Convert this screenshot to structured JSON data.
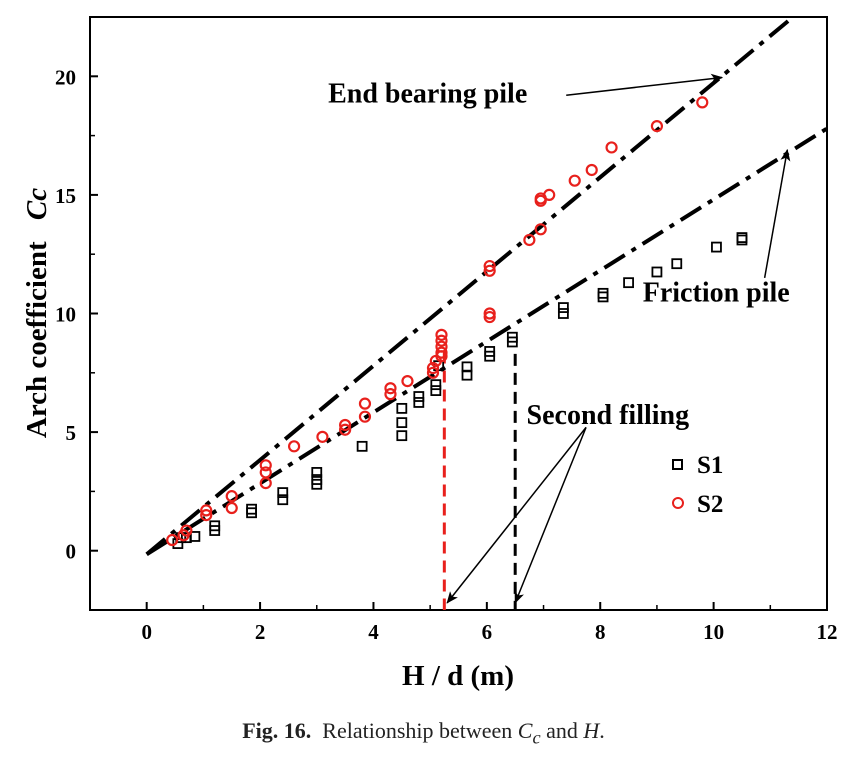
{
  "chart_data": {
    "type": "scatter",
    "xlabel": "H / d (m)",
    "ylabel": "Arch coefficient",
    "ylabel_symbol": "Cc",
    "xlim": [
      -1,
      12
    ],
    "ylim": [
      -2.5,
      22.5
    ],
    "x_ticks": [
      "0",
      "2",
      "4",
      "6",
      "8",
      "10",
      "12"
    ],
    "y_ticks": [
      "0",
      "5",
      "10",
      "15",
      "20"
    ],
    "grid": false,
    "legend_position": "bottom-right",
    "series": [
      {
        "name": "S1",
        "marker": "open-square",
        "color": "#000000",
        "points": [
          [
            0.55,
            0.3
          ],
          [
            0.6,
            0.55
          ],
          [
            0.7,
            0.55
          ],
          [
            0.85,
            0.6
          ],
          [
            1.2,
            0.85
          ],
          [
            1.2,
            1.05
          ],
          [
            1.85,
            1.6
          ],
          [
            1.85,
            1.75
          ],
          [
            2.4,
            2.15
          ],
          [
            2.4,
            2.45
          ],
          [
            3.0,
            2.8
          ],
          [
            3.0,
            3.0
          ],
          [
            3.0,
            3.3
          ],
          [
            3.8,
            4.4
          ],
          [
            4.5,
            4.85
          ],
          [
            4.5,
            5.4
          ],
          [
            4.5,
            6.0
          ],
          [
            4.8,
            6.25
          ],
          [
            4.8,
            6.5
          ],
          [
            5.1,
            6.75
          ],
          [
            5.1,
            7.0
          ],
          [
            5.15,
            7.8
          ],
          [
            5.65,
            7.4
          ],
          [
            5.65,
            7.75
          ],
          [
            6.05,
            8.2
          ],
          [
            6.05,
            8.4
          ],
          [
            6.45,
            8.8
          ],
          [
            6.45,
            9.0
          ],
          [
            7.35,
            10.0
          ],
          [
            7.35,
            10.25
          ],
          [
            8.05,
            10.7
          ],
          [
            8.05,
            10.85
          ],
          [
            8.5,
            11.3
          ],
          [
            9.0,
            11.75
          ],
          [
            9.35,
            12.1
          ],
          [
            10.05,
            12.8
          ],
          [
            10.5,
            13.1
          ],
          [
            10.5,
            13.2
          ]
        ]
      },
      {
        "name": "S2",
        "marker": "open-circle",
        "color": "#e8201c",
        "points": [
          [
            0.45,
            0.45
          ],
          [
            0.65,
            0.65
          ],
          [
            0.7,
            0.85
          ],
          [
            1.05,
            1.5
          ],
          [
            1.05,
            1.7
          ],
          [
            1.5,
            1.8
          ],
          [
            1.5,
            2.3
          ],
          [
            2.1,
            2.85
          ],
          [
            2.1,
            3.3
          ],
          [
            2.1,
            3.6
          ],
          [
            2.6,
            4.4
          ],
          [
            3.1,
            4.8
          ],
          [
            3.5,
            5.1
          ],
          [
            3.5,
            5.3
          ],
          [
            3.85,
            5.65
          ],
          [
            3.85,
            6.2
          ],
          [
            4.3,
            6.6
          ],
          [
            4.3,
            6.85
          ],
          [
            4.6,
            7.15
          ],
          [
            5.05,
            7.5
          ],
          [
            5.05,
            7.7
          ],
          [
            5.1,
            8.0
          ],
          [
            5.2,
            8.2
          ],
          [
            5.2,
            8.35
          ],
          [
            5.2,
            8.6
          ],
          [
            5.2,
            8.85
          ],
          [
            5.2,
            9.1
          ],
          [
            6.05,
            9.85
          ],
          [
            6.05,
            10.0
          ],
          [
            6.05,
            11.8
          ],
          [
            6.05,
            12.0
          ],
          [
            6.75,
            13.1
          ],
          [
            6.95,
            13.55
          ],
          [
            6.95,
            14.75
          ],
          [
            6.95,
            14.85
          ],
          [
            7.1,
            15.0
          ],
          [
            7.55,
            15.6
          ],
          [
            7.85,
            16.05
          ],
          [
            8.2,
            17.0
          ],
          [
            9.0,
            17.9
          ],
          [
            9.8,
            18.9
          ]
        ]
      }
    ],
    "fit_lines": [
      {
        "label": "End bearing pile",
        "color": "#000000",
        "from": [
          0,
          -0.15
        ],
        "to": [
          11.4,
          22.5
        ]
      },
      {
        "label": "Friction pile",
        "color": "#000000",
        "from": [
          0,
          -0.15
        ],
        "to": [
          12,
          17.8
        ]
      }
    ],
    "vertical_markers": [
      {
        "x": 5.25,
        "y_top": 8.4,
        "color": "#e8201c"
      },
      {
        "x": 6.5,
        "y_top": 8.3,
        "color": "#000000"
      }
    ],
    "annotations": [
      {
        "text": "End bearing pile",
        "text_at": [
          3.2,
          18.9
        ],
        "arrow_from": [
          7.4,
          19.2
        ],
        "arrow_to": [
          10.15,
          19.95
        ]
      },
      {
        "text": "Friction pile",
        "text_at": [
          8.75,
          10.5
        ],
        "arrow_from": [
          10.9,
          11.5
        ],
        "arrow_to": [
          11.3,
          16.9
        ]
      },
      {
        "text": "Second filling",
        "text_at": [
          6.7,
          5.35
        ],
        "arrows": [
          {
            "from": [
              7.75,
              5.2
            ],
            "to": [
              5.3,
              -2.2
            ]
          },
          {
            "from": [
              7.75,
              5.2
            ],
            "to": [
              6.5,
              -2.2
            ]
          }
        ]
      }
    ]
  },
  "caption": {
    "fig_label": "Fig. 16.",
    "text_before": "Relationship between ",
    "symbol_main": "C",
    "symbol_sub": "c",
    "text_mid": " and ",
    "symbol_h": "H",
    "text_end": "."
  }
}
